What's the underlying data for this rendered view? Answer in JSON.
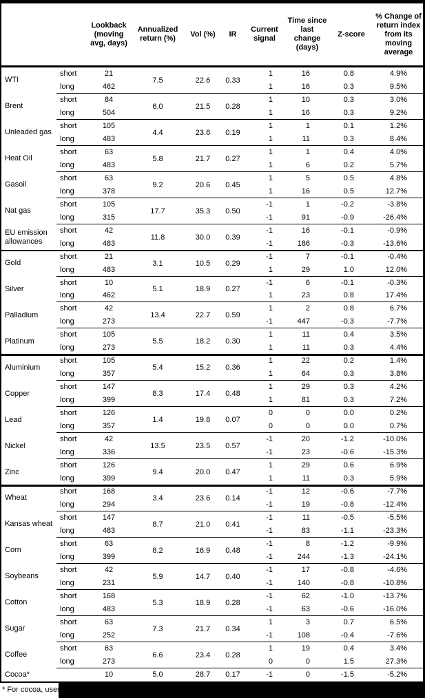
{
  "header": {
    "columns": [
      "Lookback (moving avg, days)",
      "Annualized return (%)",
      "Vol (%)",
      "IR",
      "Current signal",
      "Time since last change (days)",
      "Z-score",
      "% Change of return index from its moving average"
    ]
  },
  "table": {
    "sections": [
      {
        "commodities": [
          {
            "name": "WTI",
            "ann": "7.5",
            "vol": "22.6",
            "ir": "0.33",
            "legs": [
              {
                "label": "short",
                "lookback": "21",
                "signal": "1",
                "days": "16",
                "z": "0.8",
                "pct": "4.9%"
              },
              {
                "label": "long",
                "lookback": "462",
                "signal": "1",
                "days": "16",
                "z": "0.3",
                "pct": "9.5%"
              }
            ]
          },
          {
            "name": "Brent",
            "ann": "6.0",
            "vol": "21.5",
            "ir": "0.28",
            "legs": [
              {
                "label": "short",
                "lookback": "84",
                "signal": "1",
                "days": "10",
                "z": "0.3",
                "pct": "3.0%"
              },
              {
                "label": "long",
                "lookback": "504",
                "signal": "1",
                "days": "16",
                "z": "0.3",
                "pct": "9.2%"
              }
            ]
          },
          {
            "name": "Unleaded gas",
            "ann": "4.4",
            "vol": "23.6",
            "ir": "0.19",
            "legs": [
              {
                "label": "short",
                "lookback": "105",
                "signal": "1",
                "days": "1",
                "z": "0.1",
                "pct": "1.2%"
              },
              {
                "label": "long",
                "lookback": "483",
                "signal": "1",
                "days": "11",
                "z": "0.3",
                "pct": "8.4%"
              }
            ]
          },
          {
            "name": "Heat Oil",
            "ann": "5.8",
            "vol": "21.7",
            "ir": "0.27",
            "legs": [
              {
                "label": "short",
                "lookback": "63",
                "signal": "1",
                "days": "1",
                "z": "0.4",
                "pct": "4.0%"
              },
              {
                "label": "long",
                "lookback": "483",
                "signal": "1",
                "days": "6",
                "z": "0.2",
                "pct": "5.7%"
              }
            ]
          },
          {
            "name": "Gasoil",
            "ann": "9.2",
            "vol": "20.6",
            "ir": "0.45",
            "legs": [
              {
                "label": "short",
                "lookback": "63",
                "signal": "1",
                "days": "5",
                "z": "0.5",
                "pct": "4.8%"
              },
              {
                "label": "long",
                "lookback": "378",
                "signal": "1",
                "days": "16",
                "z": "0.5",
                "pct": "12.7%"
              }
            ]
          },
          {
            "name": "Nat gas",
            "ann": "17.7",
            "vol": "35.3",
            "ir": "0.50",
            "legs": [
              {
                "label": "short",
                "lookback": "105",
                "signal": "-1",
                "days": "1",
                "z": "-0.2",
                "pct": "-3.8%"
              },
              {
                "label": "long",
                "lookback": "315",
                "signal": "-1",
                "days": "91",
                "z": "-0.9",
                "pct": "-26.4%"
              }
            ]
          },
          {
            "name": "EU emission allowances",
            "ann": "11.8",
            "vol": "30.0",
            "ir": "0.39",
            "legs": [
              {
                "label": "short",
                "lookback": "42",
                "signal": "-1",
                "days": "16",
                "z": "-0.1",
                "pct": "-0.9%"
              },
              {
                "label": "long",
                "lookback": "483",
                "signal": "-1",
                "days": "186",
                "z": "-0.3",
                "pct": "-13.6%"
              }
            ]
          }
        ]
      },
      {
        "commodities": [
          {
            "name": "Gold",
            "ann": "3.1",
            "vol": "10.5",
            "ir": "0.29",
            "legs": [
              {
                "label": "short",
                "lookback": "21",
                "signal": "-1",
                "days": "7",
                "z": "-0.1",
                "pct": "-0.4%"
              },
              {
                "label": "long",
                "lookback": "483",
                "signal": "1",
                "days": "29",
                "z": "1.0",
                "pct": "12.0%"
              }
            ]
          },
          {
            "name": "Silver",
            "ann": "5.1",
            "vol": "18.9",
            "ir": "0.27",
            "legs": [
              {
                "label": "short",
                "lookback": "10",
                "signal": "-1",
                "days": "6",
                "z": "-0.1",
                "pct": "-0.3%"
              },
              {
                "label": "long",
                "lookback": "462",
                "signal": "1",
                "days": "23",
                "z": "0.8",
                "pct": "17.4%"
              }
            ]
          },
          {
            "name": "Palladium",
            "ann": "13.4",
            "vol": "22.7",
            "ir": "0.59",
            "legs": [
              {
                "label": "short",
                "lookback": "42",
                "signal": "1",
                "days": "2",
                "z": "0.8",
                "pct": "6.7%"
              },
              {
                "label": "long",
                "lookback": "273",
                "signal": "-1",
                "days": "447",
                "z": "-0.3",
                "pct": "-7.7%"
              }
            ]
          },
          {
            "name": "Platinum",
            "ann": "5.5",
            "vol": "18.2",
            "ir": "0.30",
            "legs": [
              {
                "label": "short",
                "lookback": "105",
                "signal": "1",
                "days": "11",
                "z": "0.4",
                "pct": "3.5%"
              },
              {
                "label": "long",
                "lookback": "273",
                "signal": "1",
                "days": "11",
                "z": "0.3",
                "pct": "4.4%"
              }
            ]
          }
        ]
      },
      {
        "commodities": [
          {
            "name": "Aluminium",
            "ann": "5.4",
            "vol": "15.2",
            "ir": "0.36",
            "legs": [
              {
                "label": "short",
                "lookback": "105",
                "signal": "1",
                "days": "22",
                "z": "0.2",
                "pct": "1.4%"
              },
              {
                "label": "long",
                "lookback": "357",
                "signal": "1",
                "days": "64",
                "z": "0.3",
                "pct": "3.8%"
              }
            ]
          },
          {
            "name": "Copper",
            "ann": "8.3",
            "vol": "17.4",
            "ir": "0.48",
            "legs": [
              {
                "label": "short",
                "lookback": "147",
                "signal": "1",
                "days": "29",
                "z": "0.3",
                "pct": "4.2%"
              },
              {
                "label": "long",
                "lookback": "399",
                "signal": "1",
                "days": "81",
                "z": "0.3",
                "pct": "7.2%"
              }
            ]
          },
          {
            "name": "Lead",
            "ann": "1.4",
            "vol": "19.8",
            "ir": "0.07",
            "legs": [
              {
                "label": "short",
                "lookback": "126",
                "signal": "0",
                "days": "0",
                "z": "0.0",
                "pct": "0.2%"
              },
              {
                "label": "long",
                "lookback": "357",
                "signal": "0",
                "days": "0",
                "z": "0.0",
                "pct": "0.7%"
              }
            ]
          },
          {
            "name": "Nickel",
            "ann": "13.5",
            "vol": "23.5",
            "ir": "0.57",
            "legs": [
              {
                "label": "short",
                "lookback": "42",
                "signal": "-1",
                "days": "20",
                "z": "-1.2",
                "pct": "-10.0%"
              },
              {
                "label": "long",
                "lookback": "336",
                "signal": "-1",
                "days": "23",
                "z": "-0.6",
                "pct": "-15.3%"
              }
            ]
          },
          {
            "name": "Zinc",
            "ann": "9.4",
            "vol": "20.0",
            "ir": "0.47",
            "legs": [
              {
                "label": "short",
                "lookback": "126",
                "signal": "1",
                "days": "29",
                "z": "0.6",
                "pct": "6.9%"
              },
              {
                "label": "long",
                "lookback": "399",
                "signal": "1",
                "days": "11",
                "z": "0.3",
                "pct": "5.9%"
              }
            ]
          }
        ]
      },
      {
        "commodities": [
          {
            "name": "Wheat",
            "ann": "3.4",
            "vol": "23.6",
            "ir": "0.14",
            "legs": [
              {
                "label": "short",
                "lookback": "168",
                "signal": "-1",
                "days": "12",
                "z": "-0.6",
                "pct": "-7.7%"
              },
              {
                "label": "long",
                "lookback": "294",
                "signal": "-1",
                "days": "19",
                "z": "-0.8",
                "pct": "-12.4%"
              }
            ]
          },
          {
            "name": "Kansas wheat",
            "ann": "8.7",
            "vol": "21.0",
            "ir": "0.41",
            "legs": [
              {
                "label": "short",
                "lookback": "147",
                "signal": "-1",
                "days": "11",
                "z": "-0.5",
                "pct": "-5.5%"
              },
              {
                "label": "long",
                "lookback": "483",
                "signal": "-1",
                "days": "83",
                "z": "-1.1",
                "pct": "-23.3%"
              }
            ]
          },
          {
            "name": "Corn",
            "ann": "8.2",
            "vol": "16.9",
            "ir": "0.48",
            "legs": [
              {
                "label": "short",
                "lookback": "63",
                "signal": "-1",
                "days": "8",
                "z": "-1.2",
                "pct": "-9.9%"
              },
              {
                "label": "long",
                "lookback": "399",
                "signal": "-1",
                "days": "244",
                "z": "-1.3",
                "pct": "-24.1%"
              }
            ]
          },
          {
            "name": "Soybeans",
            "ann": "5.9",
            "vol": "14.7",
            "ir": "0.40",
            "legs": [
              {
                "label": "short",
                "lookback": "42",
                "signal": "-1",
                "days": "17",
                "z": "-0.8",
                "pct": "-4.6%"
              },
              {
                "label": "long",
                "lookback": "231",
                "signal": "-1",
                "days": "140",
                "z": "-0.8",
                "pct": "-10.8%"
              }
            ]
          },
          {
            "name": "Cotton",
            "ann": "5.3",
            "vol": "18.9",
            "ir": "0.28",
            "legs": [
              {
                "label": "short",
                "lookback": "168",
                "signal": "-1",
                "days": "62",
                "z": "-1.0",
                "pct": "-13.7%"
              },
              {
                "label": "long",
                "lookback": "483",
                "signal": "-1",
                "days": "63",
                "z": "-0.6",
                "pct": "-16.0%"
              }
            ]
          },
          {
            "name": "Sugar",
            "ann": "7.3",
            "vol": "21.7",
            "ir": "0.34",
            "legs": [
              {
                "label": "short",
                "lookback": "63",
                "signal": "1",
                "days": "3",
                "z": "0.7",
                "pct": "6.5%"
              },
              {
                "label": "long",
                "lookback": "252",
                "signal": "-1",
                "days": "108",
                "z": "-0.4",
                "pct": "-7.6%"
              }
            ]
          },
          {
            "name": "Coffee",
            "ann": "6.6",
            "vol": "23.4",
            "ir": "0.28",
            "legs": [
              {
                "label": "short",
                "lookback": "63",
                "signal": "1",
                "days": "19",
                "z": "0.4",
                "pct": "3.4%"
              },
              {
                "label": "long",
                "lookback": "273",
                "signal": "0",
                "days": "0",
                "z": "1.5",
                "pct": "27.3%"
              }
            ]
          },
          {
            "name": "Cocoa*",
            "ann": "5.0",
            "vol": "28.7",
            "ir": "0.17",
            "legs": [
              {
                "label": "",
                "lookback": "10",
                "signal": "-1",
                "days": "0",
                "z": "-1.5",
                "pct": "-5.2%"
              }
            ]
          }
        ]
      }
    ]
  },
  "footnote": {
    "text": "* For cocoa, uses c"
  },
  "colors": {
    "border": "#000000",
    "background": "#ffffff",
    "redaction": "#000000"
  }
}
